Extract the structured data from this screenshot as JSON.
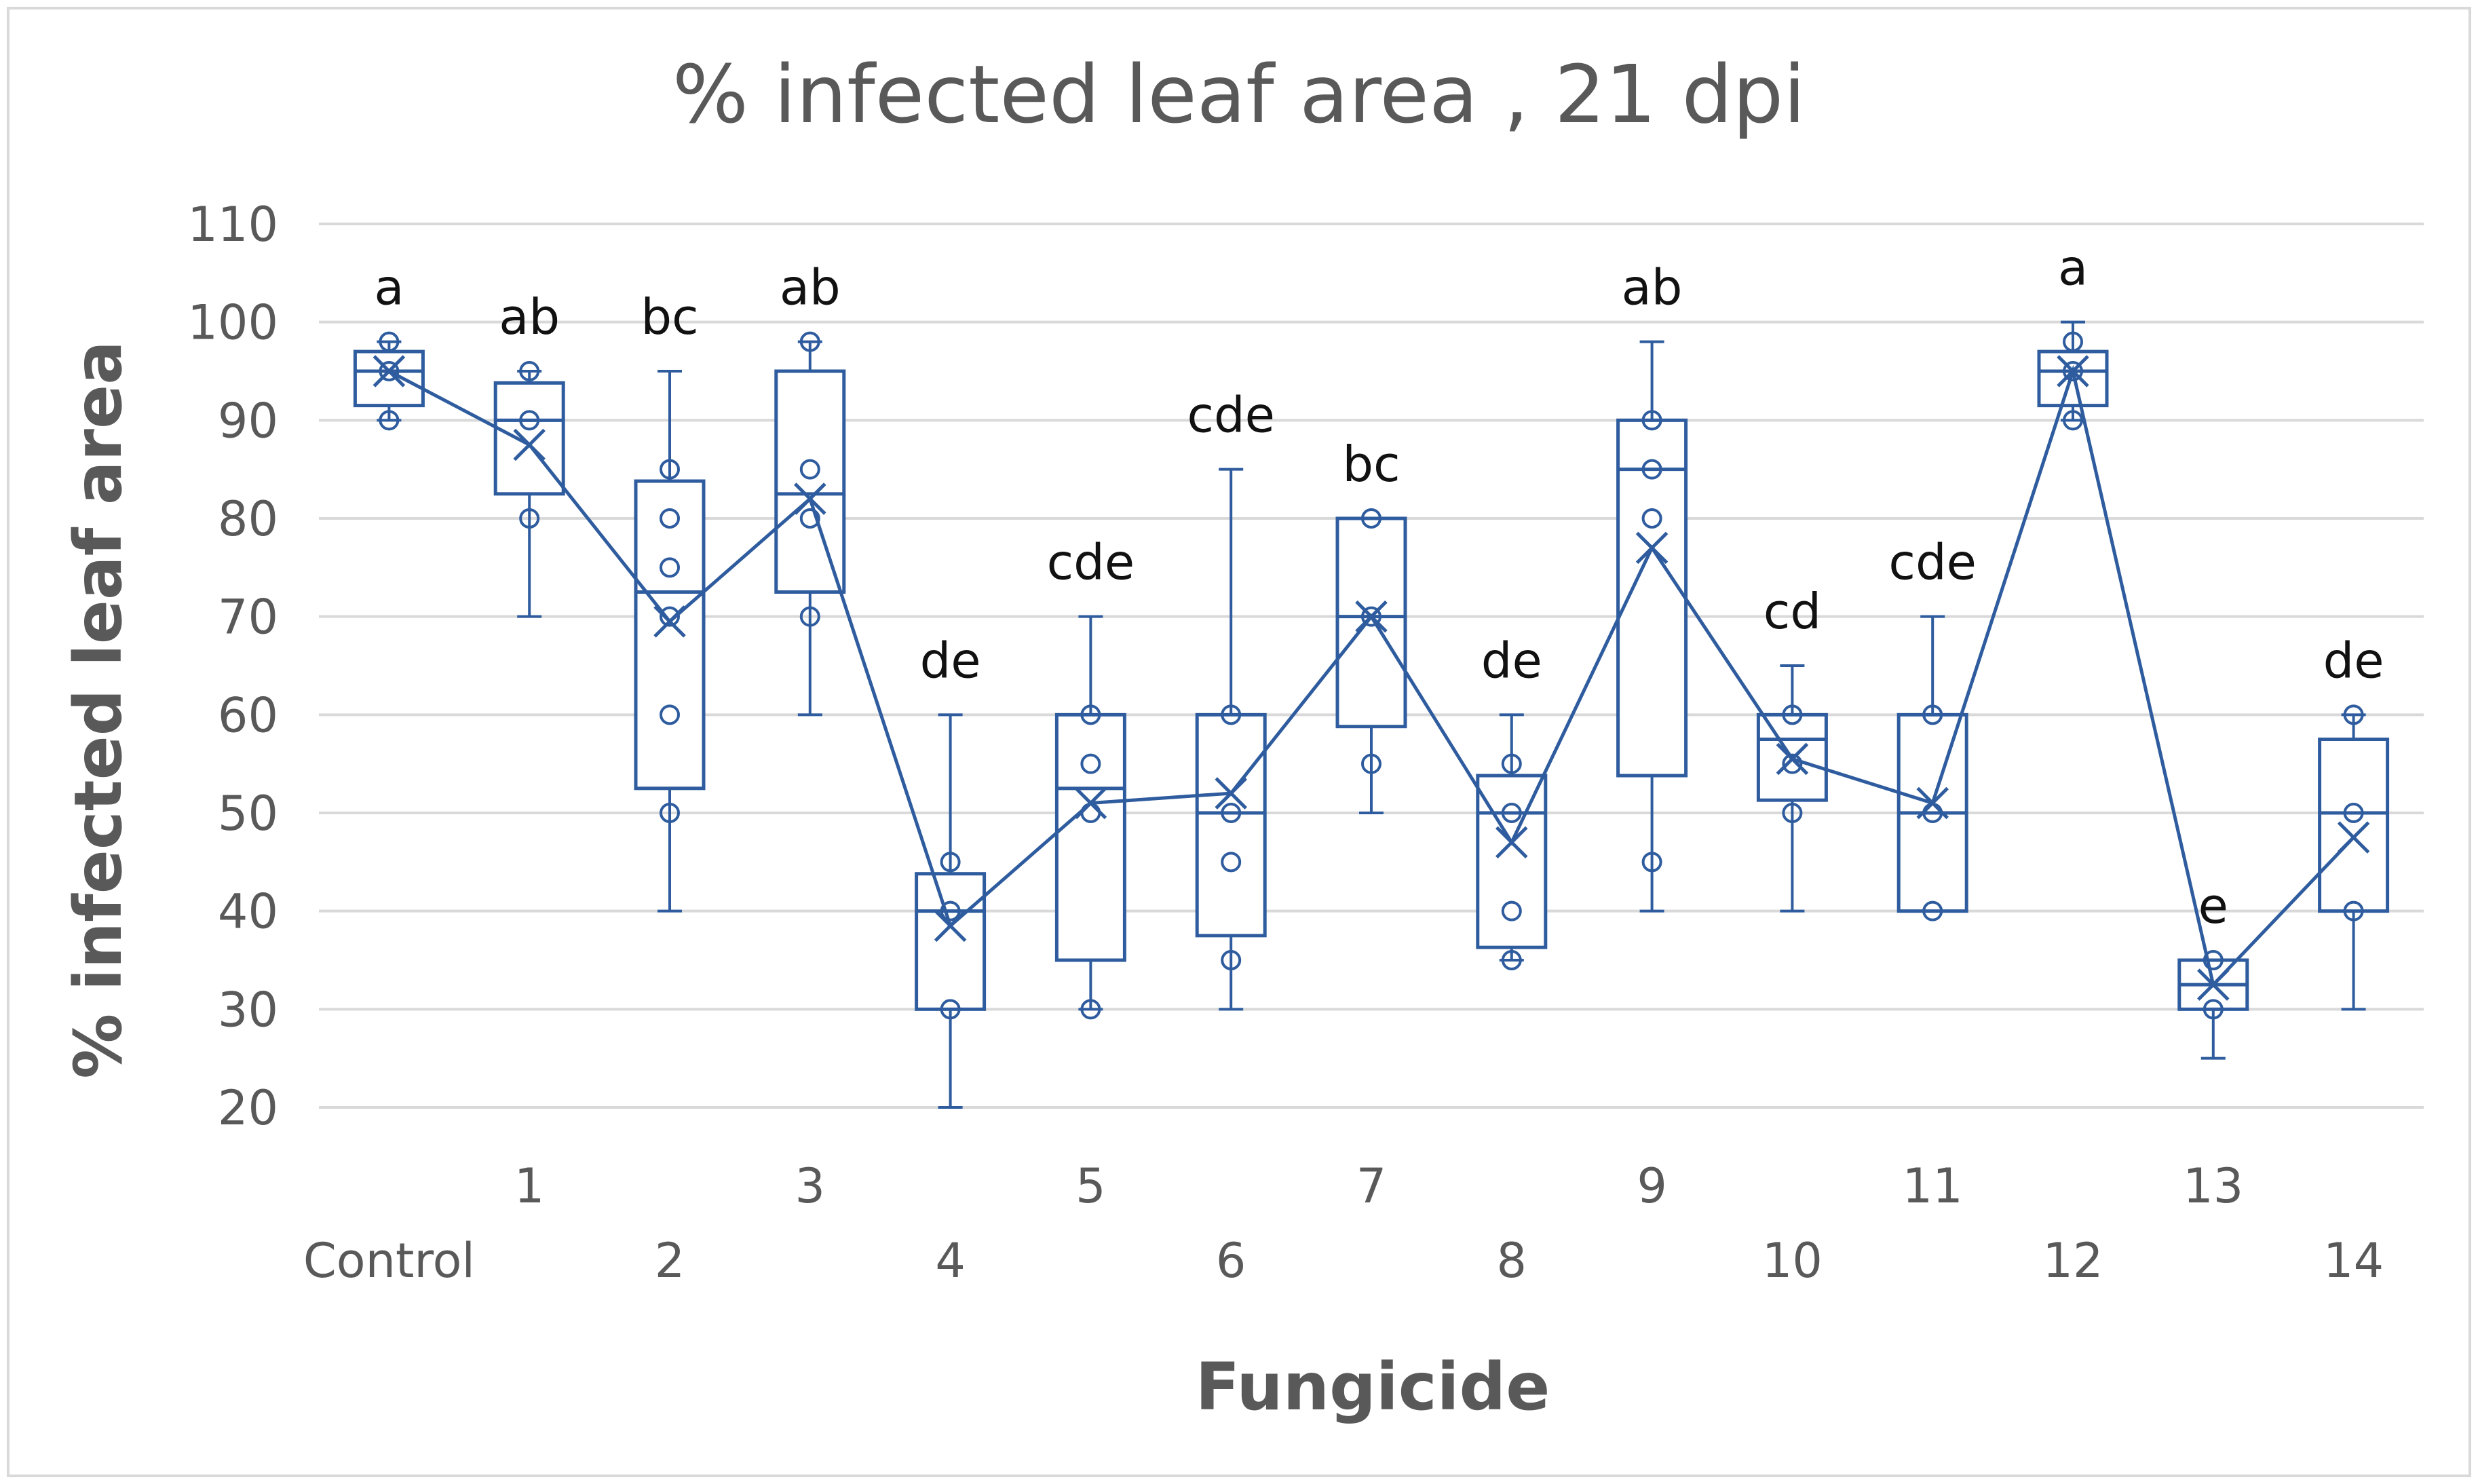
{
  "chart_data": {
    "type": "box",
    "title": "% infected leaf area , 21 dpi",
    "xlabel": "Fungicide",
    "ylabel": "% infected leaf  area",
    "ylim": [
      20,
      110
    ],
    "yticks": [
      20,
      30,
      40,
      50,
      60,
      70,
      80,
      90,
      100,
      110
    ],
    "grid": true,
    "color": "#2e5c9e",
    "gridColor": "#d9d9d9",
    "categories": [
      "Control",
      "1",
      "2",
      "3",
      "4",
      "5",
      "6",
      "7",
      "8",
      "9",
      "10",
      "11",
      "12",
      "13",
      "14"
    ],
    "letters": [
      "a",
      "ab",
      "bc",
      "ab",
      "de",
      "cde",
      "cde",
      "bc",
      "de",
      "ab",
      "cd",
      "cde",
      "a",
      "e",
      "de"
    ],
    "boxes": [
      {
        "min": 90,
        "q1": 91.5,
        "median": 95,
        "q3": 97,
        "max": 98,
        "mean": 95,
        "points": [
          90,
          95,
          98
        ]
      },
      {
        "min": 70,
        "q1": 82.5,
        "median": 90,
        "q3": 93.8,
        "max": 95,
        "mean": 87.5,
        "points": [
          80,
          90,
          95
        ]
      },
      {
        "min": 40,
        "q1": 52.5,
        "median": 72.5,
        "q3": 83.8,
        "max": 95,
        "mean": 69.5,
        "points": [
          50,
          60,
          70,
          75,
          80,
          85
        ]
      },
      {
        "min": 60,
        "q1": 72.5,
        "median": 82.5,
        "q3": 95,
        "max": 98,
        "mean": 82,
        "points": [
          70,
          80,
          85,
          98
        ]
      },
      {
        "min": 20,
        "q1": 30,
        "median": 40,
        "q3": 43.8,
        "max": 60,
        "mean": 38.5,
        "points": [
          30,
          40,
          45
        ]
      },
      {
        "min": 30,
        "q1": 35,
        "median": 52.5,
        "q3": 60,
        "max": 70,
        "mean": 51,
        "points": [
          30,
          50,
          55,
          60
        ]
      },
      {
        "min": 30,
        "q1": 37.5,
        "median": 50,
        "q3": 60,
        "max": 85,
        "mean": 52,
        "points": [
          35,
          45,
          50,
          60
        ]
      },
      {
        "min": 50,
        "q1": 58.8,
        "median": 70,
        "q3": 80,
        "max": 80,
        "mean": 70,
        "points": [
          55,
          70,
          80
        ]
      },
      {
        "min": 35,
        "q1": 36.3,
        "median": 50,
        "q3": 53.8,
        "max": 60,
        "mean": 47,
        "points": [
          35,
          40,
          50,
          55
        ]
      },
      {
        "min": 40,
        "q1": 53.8,
        "median": 85,
        "q3": 90,
        "max": 98,
        "mean": 77,
        "points": [
          45,
          80,
          85,
          90
        ]
      },
      {
        "min": 40,
        "q1": 51.3,
        "median": 57.5,
        "q3": 60,
        "max": 65,
        "mean": 55.5,
        "points": [
          50,
          55,
          60
        ]
      },
      {
        "min": 40,
        "q1": 40,
        "median": 50,
        "q3": 60,
        "max": 70,
        "mean": 51,
        "points": [
          40,
          50,
          60
        ]
      },
      {
        "min": 90,
        "q1": 91.5,
        "median": 95,
        "q3": 97,
        "max": 100,
        "mean": 95,
        "points": [
          90,
          95,
          98
        ]
      },
      {
        "min": 25,
        "q1": 30,
        "median": 32.5,
        "q3": 35,
        "max": 35,
        "mean": 32.5,
        "points": [
          30,
          35
        ]
      },
      {
        "min": 30,
        "q1": 40,
        "median": 50,
        "q3": 57.5,
        "max": 60,
        "mean": 47.5,
        "points": [
          40,
          50,
          60
        ]
      }
    ]
  }
}
